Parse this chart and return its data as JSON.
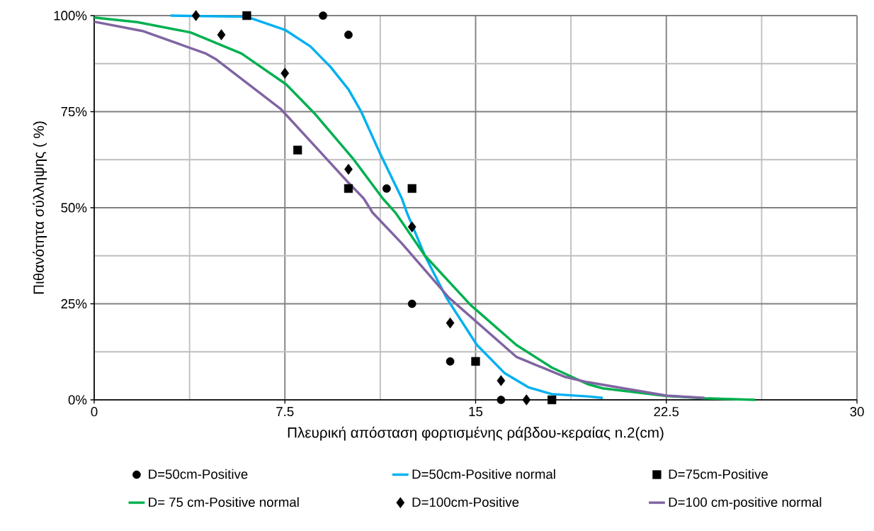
{
  "chart_data": {
    "type": "line",
    "xlabel": "Πλευρική απόσταση  φορτισμένης ράβδου-κεραίας n.2(cm)",
    "ylabel": "Πιθανότητα σύλληψης ( %)",
    "xlim": [
      0,
      30
    ],
    "xticks": [
      0,
      7.5,
      15,
      22.5,
      30
    ],
    "ylim": [
      0,
      100
    ],
    "yticks": [
      {
        "value": 0,
        "label": "0%"
      },
      {
        "value": 25,
        "label": "25%"
      },
      {
        "value": 50,
        "label": "50%"
      },
      {
        "value": 75,
        "label": "75%"
      },
      {
        "value": 100,
        "label": "100%"
      }
    ],
    "grid": true,
    "legend": "bottom",
    "series": [
      {
        "name": "D=50cm-Positive",
        "type": "scatter",
        "marker": "circle",
        "color": "#000000",
        "x": [
          9,
          10,
          11.5,
          12.5,
          14,
          16
        ],
        "values": [
          100,
          95,
          55,
          25,
          10,
          0
        ]
      },
      {
        "name": "D=50cm-Positive normal",
        "color": "#00b0f0",
        "x": [
          3,
          6,
          7.5,
          8.5,
          9.3,
          10,
          10.5,
          11.25,
          12.1,
          12.3,
          13,
          13.85,
          15.05,
          16.15,
          17.1,
          18,
          19.4,
          20
        ],
        "values": [
          100,
          99.7,
          96.3,
          92,
          86.6,
          80.8,
          75,
          64,
          52.4,
          48.7,
          37.6,
          26.6,
          14.3,
          6.9,
          3.2,
          1.5,
          0.9,
          0.5
        ]
      },
      {
        "name": "D=75cm-Positive",
        "type": "scatter",
        "marker": "square",
        "color": "#000000",
        "x": [
          6,
          8,
          10,
          12.5,
          15,
          18
        ],
        "values": [
          100,
          65,
          55,
          55,
          10,
          0
        ]
      },
      {
        "name": "D= 75 cm-Positive normal",
        "color": "#00b050",
        "x": [
          0,
          1.7,
          3.8,
          5.8,
          7.55,
          8.7,
          10.2,
          11.35,
          11.85,
          13,
          14.8,
          16.6,
          18,
          19.4,
          20,
          22.5,
          24,
          26
        ],
        "values": [
          99.5,
          98.3,
          95.6,
          90.1,
          82.1,
          74.3,
          62.6,
          52.4,
          48.7,
          37.6,
          24.7,
          14.3,
          8.4,
          4.1,
          3,
          1,
          0.4,
          0
        ]
      },
      {
        "name": "D=100cm-Positive",
        "type": "scatter",
        "marker": "diamond",
        "color": "#000000",
        "x": [
          4,
          5,
          7.5,
          10,
          12.5,
          14,
          16,
          17
        ],
        "values": [
          100,
          95,
          85,
          60,
          45,
          20,
          5,
          0
        ]
      },
      {
        "name": "D=100 cm-positive normal",
        "color": "#8064a2",
        "x": [
          0,
          1.9,
          4.4,
          4.8,
          7.35,
          8.7,
          10,
          10.6,
          10.95,
          12.1,
          13.95,
          16.6,
          18.5,
          19.4,
          22.5,
          24
        ],
        "values": [
          98.4,
          96,
          90.1,
          88.6,
          75.6,
          65.9,
          56.5,
          52.4,
          48.7,
          40.7,
          26.6,
          11.2,
          6,
          4.6,
          1.1,
          0.5
        ]
      }
    ]
  }
}
